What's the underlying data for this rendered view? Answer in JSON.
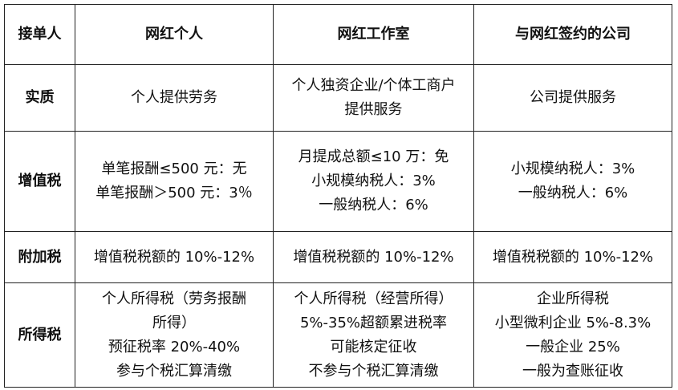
{
  "header": [
    "接单人",
    "网红个人",
    "网红工作室",
    "与网红签约的公司"
  ],
  "rows": [
    {
      "label": "实质",
      "cells": [
        [
          "个人提供劳务"
        ],
        [
          "个人独资企业/个体工商户",
          "提供服务"
        ],
        [
          "公司提供服务"
        ]
      ]
    },
    {
      "label": "增值税",
      "cells": [
        [
          "单笔报酬≤500 元：无",
          "单笔报酬＞500 元：3％"
        ],
        [
          "月提成总额≤10 万：免",
          "小规模纳税人：3%",
          "一般纳税人：6%"
        ],
        [
          "小规模纳税人：3%",
          "一般纳税人：6%"
        ]
      ]
    },
    {
      "label": "附加税",
      "cells": [
        [
          "增值税税额的 10%-12%"
        ],
        [
          "增值税税额的 10%-12%"
        ],
        [
          "增值税税额的 10%-12%"
        ]
      ]
    },
    {
      "label": "所得税",
      "cells": [
        [
          "个人所得税（劳务报酬",
          "所得）",
          "预征税率 20%-40%",
          "参与个税汇算清缴"
        ],
        [
          "个人所得税（经营所得）",
          "5%-35%超额累进税率",
          "可能核定征收",
          "不参与个税汇算清缴"
        ],
        [
          "企业所得税",
          "小型微利企业 5%-8.3%",
          "一般企业 25%",
          "一般为查账征收"
        ]
      ]
    }
  ]
}
